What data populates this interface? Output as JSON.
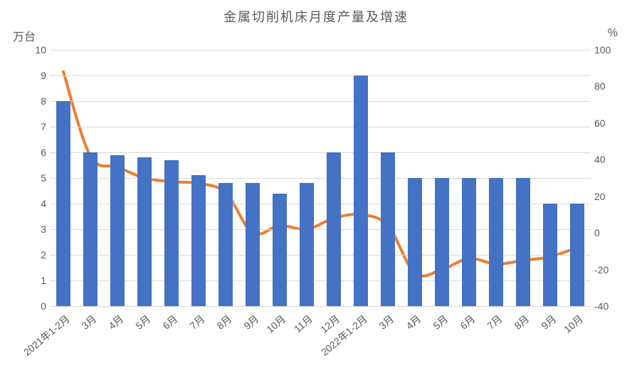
{
  "title": "金属切削机床月度产量及增速",
  "title_fontsize": 18,
  "title_color": "#595959",
  "y_left_label": "万台",
  "y_right_label": "%",
  "axis_label_fontsize": 16,
  "tick_fontsize": 14,
  "xtick_fontsize": 14,
  "background_color": "#ffffff",
  "grid_color": "#d9d9d9",
  "bar_color": "#4472c4",
  "line_color": "#ed7d31",
  "line_width": 4,
  "bar_width_ratio": 0.55,
  "left_axis": {
    "min": 0,
    "max": 10,
    "step": 1
  },
  "right_axis": {
    "min": -40,
    "max": 100,
    "step": 20
  },
  "categories": [
    "2021年1-2月",
    "3月",
    "4月",
    "5月",
    "6月",
    "7月",
    "8月",
    "9月",
    "10月",
    "11月",
    "12月",
    "2022年1-2月",
    "3月",
    "4月",
    "5月",
    "6月",
    "7月",
    "8月",
    "9月",
    "10月"
  ],
  "bars": [
    8.0,
    6.0,
    5.9,
    5.8,
    5.7,
    5.1,
    4.8,
    4.8,
    4.4,
    4.8,
    6.0,
    9.0,
    6.0,
    5.0,
    5.0,
    5.0,
    5.0,
    5.0,
    4.0,
    4.0
  ],
  "line": [
    88,
    42,
    36,
    30,
    28,
    27,
    22,
    0,
    4,
    2,
    8,
    10,
    4,
    -22,
    -20,
    -14,
    -17,
    -15,
    -13,
    -8
  ]
}
